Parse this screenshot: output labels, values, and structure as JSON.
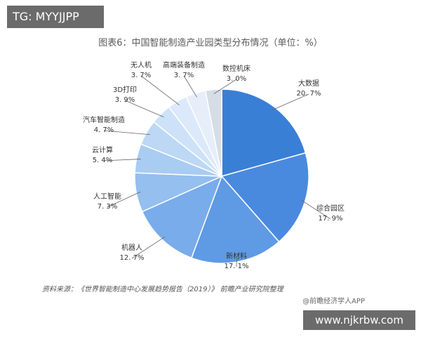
{
  "badge_top": "TG: MYYJJPP",
  "badge_bottom": "www.njkrbw.com",
  "source": "资料来源：《世界智能制造中心发展趋势报告（2019）》 前瞻产业研究院整理",
  "watermark": "@前瞻经济学人APP",
  "chart_data": {
    "type": "pie",
    "title": "图表6：中国智能制造产业园类型分布情况（单位：%）",
    "slices": [
      {
        "label": "大数据",
        "value": 20.7,
        "value_label": "20. 7%",
        "color": "#3a7fd6"
      },
      {
        "label": "综合园区",
        "value": 17.9,
        "value_label": "17. 9%",
        "color": "#4a8ade"
      },
      {
        "label": "新材料",
        "value": 17.1,
        "value_label": "17. 1%",
        "color": "#5f9ae4"
      },
      {
        "label": "机器人",
        "value": 12.7,
        "value_label": "12. 7%",
        "color": "#79acea"
      },
      {
        "label": "人工智能",
        "value": 7.3,
        "value_label": "7. 3%",
        "color": "#94bfef"
      },
      {
        "label": "云计算",
        "value": 5.4,
        "value_label": "5. 4%",
        "color": "#a9ccf2"
      },
      {
        "label": "汽车智能制造",
        "value": 4.7,
        "value_label": "4. 7%",
        "color": "#bcd8f5"
      },
      {
        "label": "3D打印",
        "value": 3.9,
        "value_label": "3. 9%",
        "color": "#cde2f8"
      },
      {
        "label": "无人机",
        "value": 3.7,
        "value_label": "3. 7%",
        "color": "#dce9fa"
      },
      {
        "label": "高端装备制造",
        "value": 3.7,
        "value_label": "3. 7%",
        "color": "#e6eefa"
      },
      {
        "label": "数控机床",
        "value": 3.0,
        "value_label": "3. 0%",
        "color": "#d6dde6"
      }
    ]
  }
}
